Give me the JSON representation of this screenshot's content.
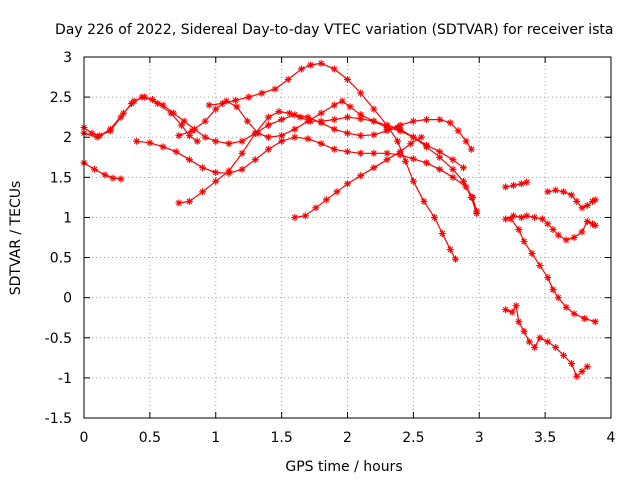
{
  "chart_data": {
    "type": "scatter",
    "title": "Day 226 of 2022, Sidereal Day-to-day VTEC variation (SDTVAR) for receiver ista",
    "xlabel": "GPS time / hours",
    "ylabel": "SDTVAR / TECUs",
    "xlim": [
      0,
      4
    ],
    "ylim": [
      -1.5,
      3
    ],
    "xticks": [
      0,
      0.5,
      1,
      1.5,
      2,
      2.5,
      3,
      3.5,
      4
    ],
    "xtick_labels": [
      "0",
      "0.5",
      "1",
      "1.5",
      "2",
      "2.5",
      "3",
      "3.5",
      "4"
    ],
    "yticks": [
      -1.5,
      -1,
      -0.5,
      0,
      0.5,
      1,
      1.5,
      2,
      2.5,
      3
    ],
    "ytick_labels": [
      "-1.5",
      "-1",
      "-0.5",
      "0",
      "0.5",
      "1",
      "1.5",
      "2",
      "2.5",
      "3"
    ],
    "grid": true,
    "marker": "asterisk",
    "color": "#ff0000",
    "series": [
      {
        "name": "s1",
        "points": [
          [
            0.0,
            1.68
          ],
          [
            0.08,
            1.6
          ],
          [
            0.16,
            1.53
          ],
          [
            0.22,
            1.49
          ],
          [
            0.28,
            1.48
          ]
        ]
      },
      {
        "name": "s2",
        "points": [
          [
            0.0,
            2.12
          ],
          [
            0.06,
            2.05
          ],
          [
            0.12,
            2.02
          ],
          [
            0.2,
            2.08
          ],
          [
            0.28,
            2.25
          ],
          [
            0.36,
            2.42
          ],
          [
            0.44,
            2.5
          ],
          [
            0.52,
            2.47
          ],
          [
            0.6,
            2.4
          ],
          [
            0.68,
            2.3
          ],
          [
            0.76,
            2.2
          ],
          [
            0.84,
            2.1
          ],
          [
            0.92,
            2.0
          ],
          [
            1.0,
            1.95
          ],
          [
            1.1,
            1.92
          ],
          [
            1.2,
            1.95
          ],
          [
            1.3,
            2.05
          ],
          [
            1.4,
            2.15
          ],
          [
            1.5,
            2.22
          ],
          [
            1.6,
            2.28
          ],
          [
            1.7,
            2.25
          ],
          [
            1.8,
            2.18
          ],
          [
            1.9,
            2.1
          ],
          [
            2.0,
            2.05
          ],
          [
            2.1,
            2.02
          ],
          [
            2.2,
            2.03
          ],
          [
            2.3,
            2.08
          ],
          [
            2.38,
            2.12
          ]
        ]
      },
      {
        "name": "s3",
        "points": [
          [
            0.0,
            2.05
          ],
          [
            0.1,
            2.0
          ],
          [
            0.2,
            2.1
          ],
          [
            0.3,
            2.3
          ],
          [
            0.38,
            2.45
          ],
          [
            0.46,
            2.5
          ],
          [
            0.56,
            2.42
          ],
          [
            0.66,
            2.3
          ],
          [
            0.74,
            2.15
          ],
          [
            0.8,
            2.02
          ],
          [
            0.86,
            1.95
          ]
        ]
      },
      {
        "name": "s4",
        "points": [
          [
            0.4,
            1.95
          ],
          [
            0.5,
            1.93
          ],
          [
            0.6,
            1.88
          ],
          [
            0.7,
            1.82
          ],
          [
            0.8,
            1.72
          ],
          [
            0.9,
            1.62
          ],
          [
            1.0,
            1.56
          ],
          [
            1.1,
            1.55
          ],
          [
            1.2,
            1.6
          ],
          [
            1.3,
            1.72
          ],
          [
            1.4,
            1.85
          ],
          [
            1.5,
            1.95
          ],
          [
            1.6,
            2.0
          ],
          [
            1.7,
            1.98
          ],
          [
            1.8,
            1.92
          ],
          [
            1.9,
            1.85
          ],
          [
            2.0,
            1.82
          ],
          [
            2.1,
            1.8
          ],
          [
            2.2,
            1.8
          ],
          [
            2.3,
            1.8
          ],
          [
            2.4,
            1.78
          ],
          [
            2.5,
            1.73
          ],
          [
            2.6,
            1.68
          ],
          [
            2.7,
            1.6
          ],
          [
            2.8,
            1.5
          ],
          [
            2.9,
            1.38
          ],
          [
            2.95,
            1.25
          ],
          [
            2.98,
            1.08
          ]
        ]
      },
      {
        "name": "s5",
        "points": [
          [
            0.72,
            1.18
          ],
          [
            0.8,
            1.2
          ],
          [
            0.9,
            1.32
          ],
          [
            1.0,
            1.45
          ],
          [
            1.1,
            1.58
          ],
          [
            1.2,
            1.8
          ],
          [
            1.3,
            2.05
          ],
          [
            1.4,
            2.25
          ],
          [
            1.48,
            2.32
          ],
          [
            1.56,
            2.3
          ],
          [
            1.64,
            2.25
          ],
          [
            1.72,
            2.2
          ],
          [
            1.8,
            2.2
          ],
          [
            1.9,
            2.22
          ],
          [
            2.0,
            2.25
          ],
          [
            2.1,
            2.23
          ],
          [
            2.2,
            2.2
          ],
          [
            2.3,
            2.15
          ],
          [
            2.4,
            2.1
          ],
          [
            2.5,
            2.0
          ],
          [
            2.6,
            1.88
          ],
          [
            2.7,
            1.75
          ],
          [
            2.8,
            1.6
          ],
          [
            2.88,
            1.45
          ],
          [
            2.94,
            1.25
          ],
          [
            2.98,
            1.05
          ]
        ]
      },
      {
        "name": "s6",
        "points": [
          [
            0.72,
            2.02
          ],
          [
            0.82,
            2.08
          ],
          [
            0.92,
            2.2
          ],
          [
            1.0,
            2.35
          ],
          [
            1.08,
            2.45
          ],
          [
            1.16,
            2.38
          ],
          [
            1.24,
            2.2
          ],
          [
            1.32,
            2.05
          ],
          [
            1.4,
            2.0
          ],
          [
            1.5,
            2.02
          ],
          [
            1.6,
            2.1
          ],
          [
            1.7,
            2.2
          ],
          [
            1.8,
            2.3
          ],
          [
            1.9,
            2.4
          ],
          [
            1.96,
            2.45
          ],
          [
            2.02,
            2.38
          ],
          [
            2.1,
            2.28
          ],
          [
            2.2,
            2.2
          ],
          [
            2.3,
            2.12
          ],
          [
            2.4,
            2.08
          ],
          [
            2.5,
            2.0
          ],
          [
            2.6,
            1.9
          ],
          [
            2.7,
            1.82
          ],
          [
            2.8,
            1.72
          ],
          [
            2.88,
            1.62
          ]
        ]
      },
      {
        "name": "s7",
        "points": [
          [
            0.95,
            2.4
          ],
          [
            1.05,
            2.42
          ],
          [
            1.15,
            2.46
          ],
          [
            1.25,
            2.5
          ],
          [
            1.35,
            2.55
          ],
          [
            1.45,
            2.6
          ],
          [
            1.55,
            2.72
          ],
          [
            1.65,
            2.85
          ],
          [
            1.72,
            2.9
          ],
          [
            1.8,
            2.92
          ],
          [
            1.9,
            2.85
          ],
          [
            2.0,
            2.72
          ],
          [
            2.1,
            2.55
          ],
          [
            2.2,
            2.35
          ],
          [
            2.3,
            2.15
          ],
          [
            2.38,
            1.95
          ],
          [
            2.44,
            1.7
          ],
          [
            2.5,
            1.45
          ],
          [
            2.58,
            1.2
          ],
          [
            2.66,
            1.0
          ],
          [
            2.72,
            0.8
          ],
          [
            2.78,
            0.6
          ],
          [
            2.82,
            0.48
          ]
        ]
      },
      {
        "name": "s8",
        "points": [
          [
            1.6,
            1.0
          ],
          [
            1.68,
            1.02
          ],
          [
            1.76,
            1.12
          ],
          [
            1.84,
            1.22
          ],
          [
            1.92,
            1.32
          ],
          [
            2.0,
            1.42
          ],
          [
            2.1,
            1.52
          ],
          [
            2.2,
            1.62
          ],
          [
            2.3,
            1.72
          ],
          [
            2.4,
            1.82
          ],
          [
            2.48,
            1.92
          ],
          [
            2.56,
            2.0
          ]
        ]
      },
      {
        "name": "s9",
        "points": [
          [
            2.3,
            2.1
          ],
          [
            2.4,
            2.15
          ],
          [
            2.5,
            2.2
          ],
          [
            2.6,
            2.22
          ],
          [
            2.7,
            2.22
          ],
          [
            2.78,
            2.18
          ],
          [
            2.84,
            2.08
          ],
          [
            2.9,
            1.95
          ],
          [
            2.94,
            1.85
          ]
        ]
      },
      {
        "name": "s10",
        "points": [
          [
            3.2,
            1.38
          ],
          [
            3.26,
            1.4
          ],
          [
            3.32,
            1.42
          ],
          [
            3.36,
            1.44
          ]
        ]
      },
      {
        "name": "s11",
        "points": [
          [
            3.2,
            0.98
          ],
          [
            3.26,
            1.02
          ],
          [
            3.32,
            1.0
          ],
          [
            3.36,
            1.02
          ],
          [
            3.42,
            1.0
          ],
          [
            3.48,
            0.98
          ],
          [
            3.52,
            0.92
          ],
          [
            3.56,
            0.85
          ],
          [
            3.6,
            0.78
          ],
          [
            3.66,
            0.72
          ],
          [
            3.72,
            0.75
          ],
          [
            3.78,
            0.82
          ],
          [
            3.82,
            0.95
          ],
          [
            3.86,
            0.92
          ],
          [
            3.88,
            0.9
          ]
        ]
      },
      {
        "name": "s12",
        "points": [
          [
            3.52,
            1.32
          ],
          [
            3.58,
            1.34
          ],
          [
            3.64,
            1.32
          ],
          [
            3.7,
            1.28
          ],
          [
            3.74,
            1.2
          ],
          [
            3.78,
            1.12
          ],
          [
            3.82,
            1.15
          ],
          [
            3.86,
            1.2
          ],
          [
            3.88,
            1.22
          ]
        ]
      },
      {
        "name": "s13",
        "points": [
          [
            3.24,
            0.98
          ],
          [
            3.3,
            0.85
          ],
          [
            3.34,
            0.7
          ],
          [
            3.4,
            0.55
          ],
          [
            3.46,
            0.4
          ],
          [
            3.52,
            0.25
          ],
          [
            3.56,
            0.1
          ],
          [
            3.6,
            0.0
          ],
          [
            3.66,
            -0.12
          ],
          [
            3.72,
            -0.2
          ],
          [
            3.8,
            -0.26
          ],
          [
            3.88,
            -0.3
          ]
        ]
      },
      {
        "name": "s14",
        "points": [
          [
            3.2,
            -0.15
          ],
          [
            3.25,
            -0.18
          ],
          [
            3.28,
            -0.1
          ],
          [
            3.3,
            -0.3
          ],
          [
            3.34,
            -0.42
          ],
          [
            3.38,
            -0.55
          ],
          [
            3.42,
            -0.62
          ],
          [
            3.46,
            -0.5
          ],
          [
            3.52,
            -0.55
          ],
          [
            3.58,
            -0.62
          ],
          [
            3.64,
            -0.72
          ],
          [
            3.7,
            -0.82
          ],
          [
            3.74,
            -0.98
          ],
          [
            3.78,
            -0.92
          ],
          [
            3.82,
            -0.86
          ]
        ]
      }
    ]
  }
}
